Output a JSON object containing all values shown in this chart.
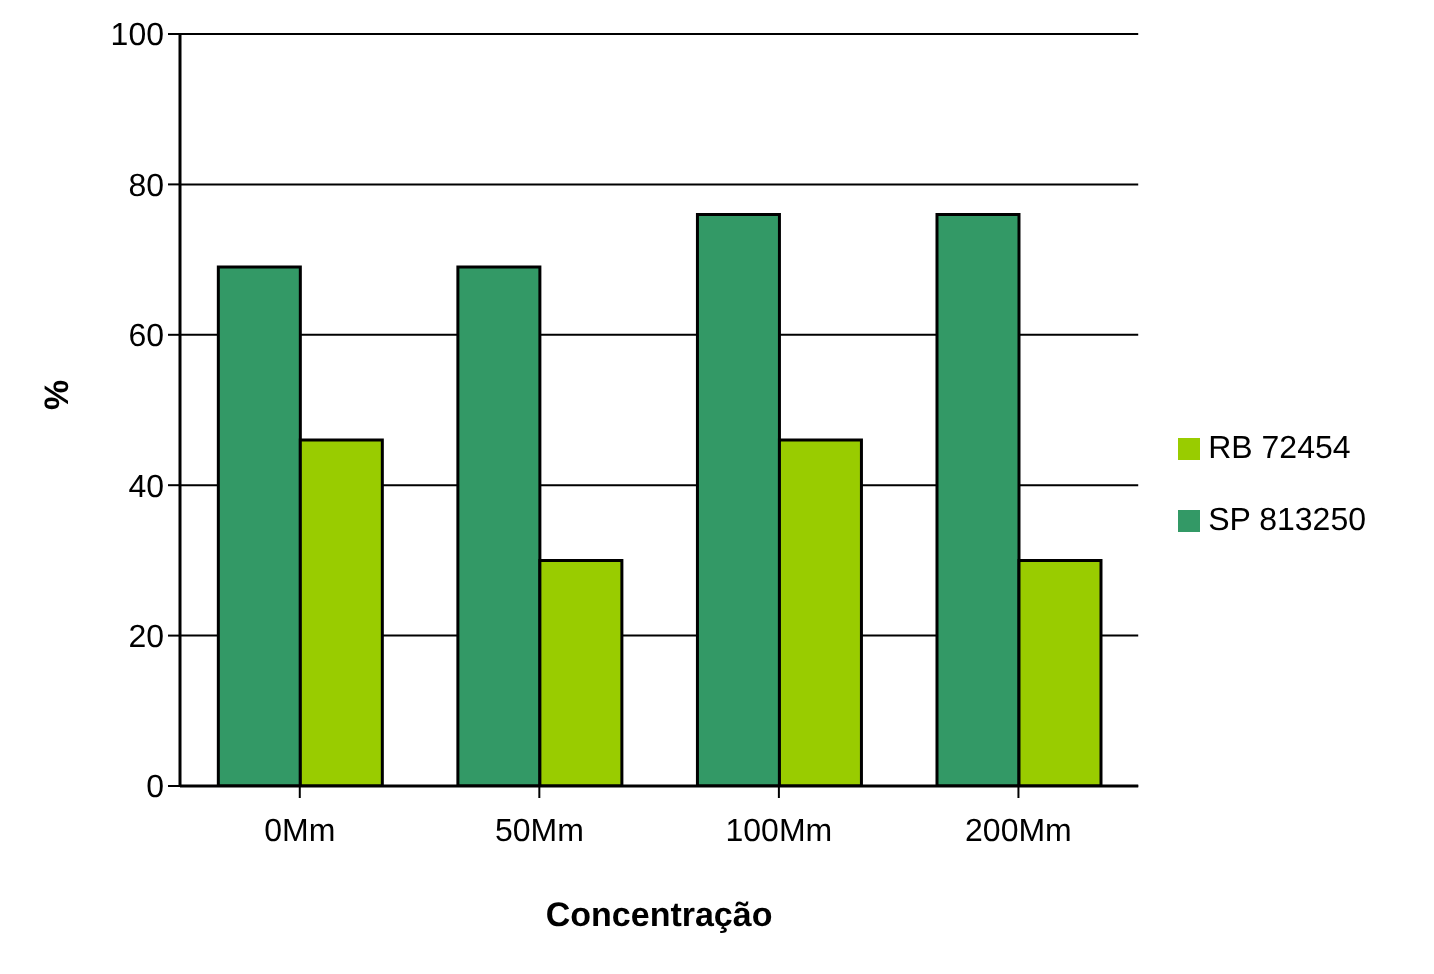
{
  "chart_data": {
    "type": "bar",
    "xlabel": "Concentração",
    "ylabel": "%",
    "categories": [
      "0Mm",
      "50Mm",
      "100Mm",
      "200Mm"
    ],
    "series": [
      {
        "name": "SP 813250",
        "color": "#339966",
        "values": [
          69,
          69,
          76,
          76
        ]
      },
      {
        "name": "RB 72454",
        "color": "#99cc00",
        "values": [
          46,
          30,
          46,
          30
        ]
      }
    ],
    "ylim": [
      0,
      100
    ],
    "yticks": [
      0,
      20,
      40,
      60,
      80,
      100
    ],
    "grid": "y",
    "legend": "right"
  }
}
